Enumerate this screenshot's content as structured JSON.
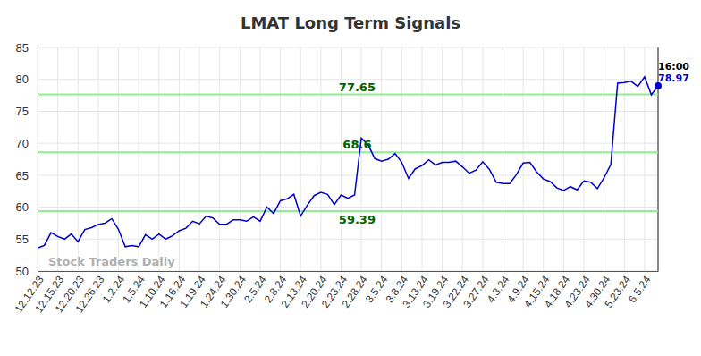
{
  "chart_data": {
    "type": "line",
    "title": "LMAT Long Term Signals",
    "watermark": "Stock Traders Daily",
    "last_time": "16:00",
    "color": "#0000cc",
    "grid": true,
    "ylim": [
      50,
      85
    ],
    "yticks": [
      50,
      55,
      60,
      65,
      70,
      75,
      80,
      85
    ],
    "reference_lines": [
      77.65,
      68.6,
      59.39
    ],
    "categories": [
      "12.12.23",
      null,
      null,
      "12.15.23",
      null,
      null,
      "12.20.23",
      null,
      null,
      "12.26.23",
      null,
      null,
      "1.2.24",
      null,
      null,
      "1.5.24",
      null,
      null,
      "1.10.24",
      null,
      null,
      "1.16.24",
      null,
      null,
      "1.19.24",
      null,
      null,
      "1.24.24",
      null,
      null,
      "1.30.24",
      null,
      null,
      "2.5.24",
      null,
      null,
      "2.8.24",
      null,
      null,
      "2.13.24",
      null,
      null,
      "2.20.24",
      null,
      null,
      "2.23.24",
      null,
      null,
      "2.28.24",
      null,
      null,
      "3.5.24",
      null,
      null,
      "3.8.24",
      null,
      null,
      "3.13.24",
      null,
      null,
      "3.19.24",
      null,
      null,
      "3.22.24",
      null,
      null,
      "3.27.24",
      null,
      null,
      "4.3.24",
      null,
      null,
      "4.9.24",
      null,
      null,
      "4.15.24",
      null,
      null,
      "4.18.24",
      null,
      null,
      "4.23.24",
      null,
      null,
      "4.30.24",
      null,
      null,
      "5.23.24",
      null,
      null,
      "6.5.24",
      null,
      null
    ],
    "values": [
      53.6,
      54.0,
      56.0,
      55.4,
      55.0,
      55.8,
      54.6,
      56.5,
      56.8,
      57.3,
      57.5,
      58.2,
      56.5,
      53.8,
      54.0,
      53.8,
      55.7,
      55.0,
      55.8,
      55.0,
      55.5,
      56.3,
      56.7,
      57.8,
      57.4,
      58.6,
      58.3,
      57.3,
      57.3,
      58.0,
      58.0,
      57.8,
      58.5,
      57.8,
      60.0,
      59.0,
      61.0,
      61.3,
      62.0,
      58.6,
      60.3,
      61.8,
      62.3,
      62.0,
      60.4,
      61.9,
      61.4,
      61.9,
      70.8,
      69.8,
      67.6,
      67.2,
      67.5,
      68.4,
      67.0,
      64.5,
      66.0,
      66.5,
      67.4,
      66.6,
      67.0,
      67.0,
      67.2,
      66.3,
      65.3,
      65.8,
      67.1,
      65.9,
      63.9,
      63.7,
      63.7,
      65.1,
      66.9,
      67.0,
      65.5,
      64.4,
      64.0,
      63.0,
      62.6,
      63.2,
      62.7,
      64.1,
      63.9,
      62.9,
      64.6,
      66.7,
      79.4,
      79.5,
      79.7,
      78.9,
      80.4,
      77.6,
      78.97
    ]
  }
}
